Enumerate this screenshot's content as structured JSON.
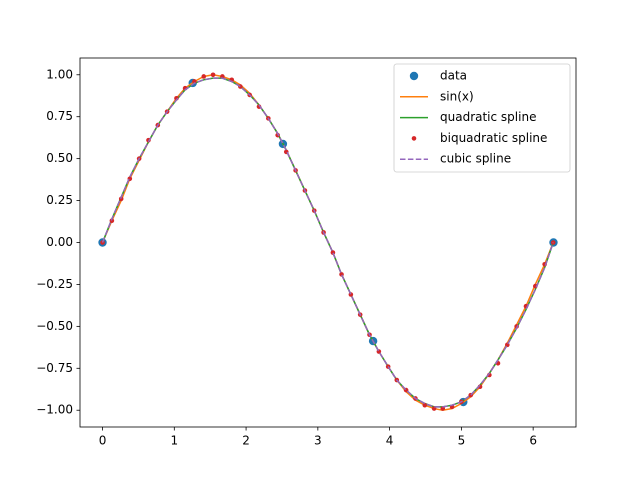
{
  "chart_data": {
    "type": "line",
    "xlim": [
      -0.314,
      6.597
    ],
    "ylim": [
      -1.1,
      1.1
    ],
    "xticks": [
      0,
      1,
      2,
      3,
      4,
      5,
      6
    ],
    "yticks": [
      {
        "value": -1,
        "label": "−1.00"
      },
      {
        "value": -0.75,
        "label": "−0.75"
      },
      {
        "value": -0.5,
        "label": "−0.50"
      },
      {
        "value": -0.25,
        "label": "−0.25"
      },
      {
        "value": 0,
        "label": "0.00"
      },
      {
        "value": 0.25,
        "label": "0.25"
      },
      {
        "value": 0.5,
        "label": "0.50"
      },
      {
        "value": 0.75,
        "label": "0.75"
      },
      {
        "value": 1,
        "label": "1.00"
      }
    ],
    "legend": "upper right",
    "series": [
      {
        "name": "data",
        "color": "#1f77b4",
        "style": "marker",
        "x": [
          0,
          1.2566,
          2.5133,
          3.7699,
          5.0265,
          6.2832
        ],
        "values": [
          0,
          0.9511,
          0.5878,
          -0.5878,
          -0.9511,
          0
        ]
      },
      {
        "name": "sin(x)",
        "color": "#ff7f0e",
        "style": "line",
        "x": [
          0,
          0.13,
          0.26,
          0.38,
          0.51,
          0.64,
          0.77,
          0.9,
          1.03,
          1.15,
          1.28,
          1.41,
          1.54,
          1.67,
          1.8,
          1.92,
          2.05,
          2.18,
          2.31,
          2.44,
          2.56,
          2.69,
          2.82,
          2.95,
          3.08,
          3.21,
          3.33,
          3.46,
          3.59,
          3.72,
          3.85,
          3.98,
          4.1,
          4.23,
          4.36,
          4.49,
          4.62,
          4.74,
          4.87,
          5.0,
          5.13,
          5.26,
          5.39,
          5.51,
          5.64,
          5.77,
          5.9,
          6.03,
          6.16,
          6.28
        ],
        "values": [
          0,
          0.13,
          0.25,
          0.38,
          0.49,
          0.6,
          0.7,
          0.78,
          0.86,
          0.92,
          0.96,
          0.99,
          1.0,
          0.99,
          0.97,
          0.94,
          0.89,
          0.82,
          0.74,
          0.65,
          0.55,
          0.43,
          0.31,
          0.19,
          0.06,
          -0.06,
          -0.19,
          -0.31,
          -0.43,
          -0.55,
          -0.65,
          -0.74,
          -0.82,
          -0.89,
          -0.94,
          -0.97,
          -0.99,
          -1.0,
          -0.99,
          -0.96,
          -0.92,
          -0.86,
          -0.78,
          -0.7,
          -0.6,
          -0.49,
          -0.38,
          -0.25,
          -0.13,
          0
        ]
      },
      {
        "name": "quadratic spline",
        "color": "#2ca02c",
        "style": "line",
        "x": [
          0,
          0.13,
          0.26,
          0.38,
          0.51,
          0.64,
          0.77,
          0.9,
          1.03,
          1.15,
          1.28,
          1.41,
          1.54,
          1.67,
          1.8,
          1.92,
          2.05,
          2.18,
          2.31,
          2.44,
          2.56,
          2.69,
          2.82,
          2.95,
          3.08,
          3.21,
          3.33,
          3.46,
          3.59,
          3.72,
          3.85,
          3.98,
          4.1,
          4.23,
          4.36,
          4.49,
          4.62,
          4.74,
          4.87,
          5.0,
          5.13,
          5.26,
          5.39,
          5.51,
          5.64,
          5.77,
          5.9,
          6.03,
          6.16,
          6.28
        ],
        "values": [
          0,
          0.14,
          0.27,
          0.39,
          0.5,
          0.6,
          0.7,
          0.78,
          0.85,
          0.91,
          0.95,
          0.97,
          0.98,
          0.98,
          0.96,
          0.93,
          0.88,
          0.82,
          0.74,
          0.65,
          0.55,
          0.43,
          0.31,
          0.19,
          0.06,
          -0.06,
          -0.19,
          -0.31,
          -0.43,
          -0.55,
          -0.65,
          -0.74,
          -0.82,
          -0.88,
          -0.93,
          -0.96,
          -0.98,
          -0.98,
          -0.97,
          -0.95,
          -0.91,
          -0.85,
          -0.78,
          -0.7,
          -0.61,
          -0.51,
          -0.4,
          -0.28,
          -0.15,
          0
        ]
      },
      {
        "name": "biquadratic spline",
        "color": "#d62728",
        "style": "dot",
        "x": [
          0,
          0.13,
          0.26,
          0.38,
          0.51,
          0.64,
          0.77,
          0.9,
          1.03,
          1.15,
          1.28,
          1.41,
          1.54,
          1.67,
          1.8,
          1.92,
          2.05,
          2.18,
          2.31,
          2.44,
          2.56,
          2.69,
          2.82,
          2.95,
          3.08,
          3.21,
          3.33,
          3.46,
          3.59,
          3.72,
          3.85,
          3.98,
          4.1,
          4.23,
          4.36,
          4.49,
          4.62,
          4.74,
          4.87,
          5.0,
          5.13,
          5.26,
          5.39,
          5.51,
          5.64,
          5.77,
          5.9,
          6.03,
          6.16,
          6.28
        ],
        "values": [
          0,
          0.13,
          0.26,
          0.38,
          0.5,
          0.61,
          0.7,
          0.78,
          0.86,
          0.92,
          0.96,
          0.99,
          1.0,
          0.99,
          0.97,
          0.93,
          0.88,
          0.81,
          0.74,
          0.64,
          0.54,
          0.43,
          0.31,
          0.19,
          0.06,
          -0.06,
          -0.19,
          -0.31,
          -0.43,
          -0.55,
          -0.65,
          -0.74,
          -0.82,
          -0.88,
          -0.93,
          -0.97,
          -0.99,
          -0.99,
          -0.98,
          -0.95,
          -0.91,
          -0.86,
          -0.79,
          -0.72,
          -0.61,
          -0.5,
          -0.38,
          -0.26,
          -0.13,
          0
        ]
      },
      {
        "name": "cubic spline",
        "color": "#9467bd",
        "style": "dashed",
        "x": [
          0,
          0.13,
          0.26,
          0.38,
          0.51,
          0.64,
          0.77,
          0.9,
          1.03,
          1.15,
          1.28,
          1.41,
          1.54,
          1.67,
          1.8,
          1.92,
          2.05,
          2.18,
          2.31,
          2.44,
          2.56,
          2.69,
          2.82,
          2.95,
          3.08,
          3.21,
          3.33,
          3.46,
          3.59,
          3.72,
          3.85,
          3.98,
          4.1,
          4.23,
          4.36,
          4.49,
          4.62,
          4.74,
          4.87,
          5.0,
          5.13,
          5.26,
          5.39,
          5.51,
          5.64,
          5.77,
          5.9,
          6.03,
          6.16,
          6.28
        ],
        "values": [
          0,
          0.14,
          0.27,
          0.39,
          0.5,
          0.6,
          0.7,
          0.78,
          0.85,
          0.91,
          0.95,
          0.97,
          0.98,
          0.98,
          0.96,
          0.93,
          0.88,
          0.82,
          0.74,
          0.65,
          0.55,
          0.43,
          0.31,
          0.19,
          0.06,
          -0.06,
          -0.19,
          -0.31,
          -0.43,
          -0.55,
          -0.65,
          -0.74,
          -0.82,
          -0.88,
          -0.93,
          -0.96,
          -0.98,
          -0.98,
          -0.97,
          -0.95,
          -0.91,
          -0.85,
          -0.78,
          -0.7,
          -0.61,
          -0.51,
          -0.4,
          -0.28,
          -0.15,
          0
        ]
      }
    ]
  }
}
